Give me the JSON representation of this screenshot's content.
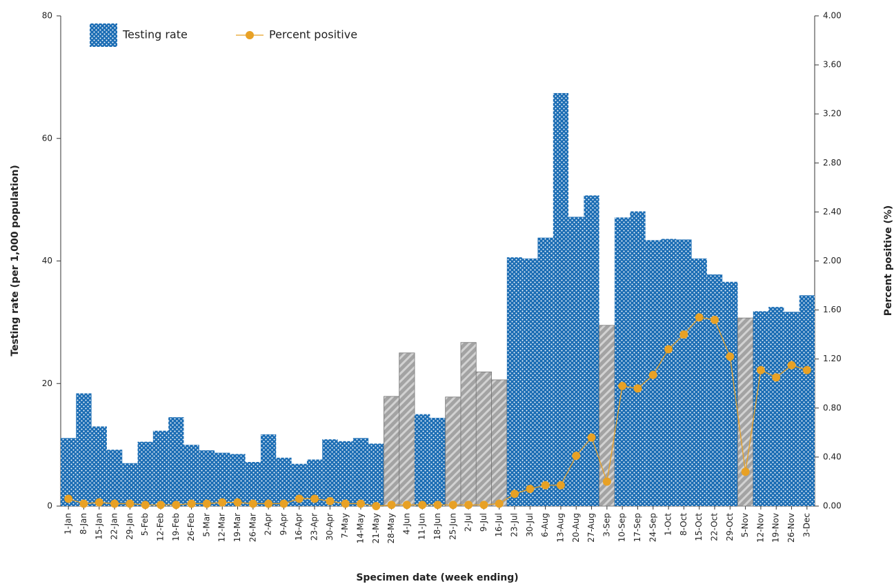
{
  "chart_data": {
    "type": "bar",
    "x_label": "Specimen date (week ending)",
    "y_label": "Testing rate (per 1,000 population)",
    "y2_label": "Percent positive (%)",
    "legend": "upper left",
    "categories": [
      "1-Jan",
      "8-Jan",
      "15-Jan",
      "22-Jan",
      "29-Jan",
      "5-Feb",
      "12-Feb",
      "19-Feb",
      "26-Feb",
      "5-Mar",
      "12-Mar",
      "19-Mar",
      "26-Mar",
      "2-Apr",
      "9-Apr",
      "16-Apr",
      "23-Apr",
      "30-Apr",
      "7-May",
      "14-May",
      "21-May",
      "28-May",
      "4-Jun",
      "11-Jun",
      "18-Jun",
      "25-Jun",
      "2-Jul",
      "9-Jul",
      "16-Jul",
      "23-Jul",
      "30-Jul",
      "6-Aug",
      "13-Aug",
      "20-Aug",
      "27-Aug",
      "3-Sep",
      "10-Sep",
      "17-Sep",
      "24-Sep",
      "1-Oct",
      "8-Oct",
      "15-Oct",
      "22-Oct",
      "29-Oct",
      "5-Nov",
      "12-Nov",
      "19-Nov",
      "26-Nov",
      "3-Dec"
    ],
    "series": [
      {
        "name": "Testing rate",
        "type": "bar",
        "color": "#1b6db4",
        "values": [
          11.1,
          18.4,
          13.0,
          9.2,
          7.0,
          10.5,
          12.3,
          14.5,
          10.0,
          9.1,
          8.7,
          8.5,
          7.2,
          11.7,
          7.9,
          6.9,
          7.6,
          10.9,
          10.6,
          11.1,
          10.2,
          17.9,
          25.0,
          15.0,
          14.4,
          17.8,
          26.7,
          21.9,
          20.6,
          40.6,
          40.4,
          43.8,
          67.4,
          47.2,
          50.7,
          29.5,
          47.1,
          48.1,
          43.4,
          43.6,
          43.5,
          40.4,
          37.8,
          36.6,
          30.7,
          31.8,
          32.5,
          31.7,
          34.4
        ],
        "point_colors": [
          "#1b6db4",
          "#1b6db4",
          "#1b6db4",
          "#1b6db4",
          "#1b6db4",
          "#1b6db4",
          "#1b6db4",
          "#1b6db4",
          "#1b6db4",
          "#1b6db4",
          "#1b6db4",
          "#1b6db4",
          "#1b6db4",
          "#1b6db4",
          "#1b6db4",
          "#1b6db4",
          "#1b6db4",
          "#1b6db4",
          "#1b6db4",
          "#1b6db4",
          "#1b6db4",
          "#a3a3a3",
          "#a3a3a3",
          "#1b6db4",
          "#1b6db4",
          "#a3a3a3",
          "#a3a3a3",
          "#a3a3a3",
          "#a3a3a3",
          "#1b6db4",
          "#1b6db4",
          "#1b6db4",
          "#1b6db4",
          "#1b6db4",
          "#1b6db4",
          "#a3a3a3",
          "#1b6db4",
          "#1b6db4",
          "#1b6db4",
          "#1b6db4",
          "#1b6db4",
          "#1b6db4",
          "#1b6db4",
          "#1b6db4",
          "#a3a3a3",
          "#1b6db4",
          "#1b6db4",
          "#1b6db4",
          "#1b6db4"
        ]
      },
      {
        "name": "Percent positive",
        "type": "line",
        "axis": "y2",
        "color": "#e8a125",
        "values": [
          0.06,
          0.02,
          0.03,
          0.02,
          0.02,
          0.01,
          0.01,
          0.01,
          0.02,
          0.02,
          0.03,
          0.03,
          0.02,
          0.02,
          0.02,
          0.06,
          0.06,
          0.04,
          0.02,
          0.02,
          0.0,
          0.01,
          0.01,
          0.01,
          0.01,
          0.01,
          0.01,
          0.01,
          0.02,
          0.1,
          0.14,
          0.17,
          0.17,
          0.41,
          0.56,
          0.2,
          0.98,
          0.96,
          1.07,
          1.28,
          1.4,
          1.54,
          1.52,
          1.22,
          0.28,
          1.11,
          1.05,
          1.15,
          1.11
        ]
      }
    ],
    "ylim": [
      0,
      80
    ],
    "yticks": [
      0,
      20,
      40,
      60,
      80
    ],
    "y2lim": [
      0,
      4
    ],
    "y2ticks": [
      {
        "value": 0,
        "label": "0.00"
      },
      {
        "value": 0.4,
        "label": "0.40"
      },
      {
        "value": 0.8,
        "label": "0.80"
      },
      {
        "value": 1.2,
        "label": "1.20"
      },
      {
        "value": 1.6,
        "label": "1.60"
      },
      {
        "value": 2.0,
        "label": "2.00"
      },
      {
        "value": 2.4,
        "label": "2.40"
      },
      {
        "value": 2.8,
        "label": "2.80"
      },
      {
        "value": 3.2,
        "label": "3.20"
      },
      {
        "value": 3.6,
        "label": "3.60"
      },
      {
        "value": 4.0,
        "label": "4.00"
      }
    ]
  }
}
